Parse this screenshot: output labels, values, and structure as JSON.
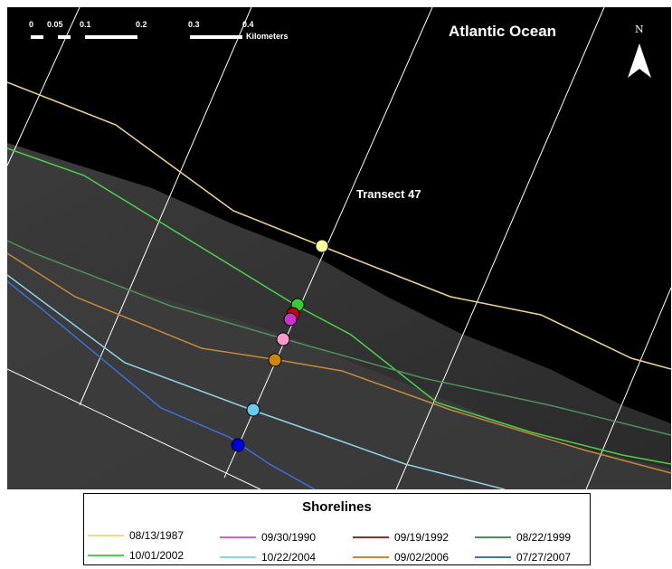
{
  "map": {
    "ocean_label": "Atlantic Ocean",
    "transect_label": "Transect 47",
    "north_label": "N",
    "scale": {
      "ticks": [
        "0",
        "0.05",
        "0.1",
        "0.2",
        "0.3",
        "0.4"
      ],
      "unit": "Kilometers"
    }
  },
  "legend": {
    "title": "Shorelines",
    "items": [
      {
        "date": "08/13/1987",
        "color": "#f3d58f"
      },
      {
        "date": "09/30/1990",
        "color": "#d95fd5"
      },
      {
        "date": "09/19/1992",
        "color": "#9b2a2a"
      },
      {
        "date": "08/22/1999",
        "color": "#4f8f5c"
      },
      {
        "date": "10/01/2002",
        "color": "#4bd24b"
      },
      {
        "date": "10/22/2004",
        "color": "#8fd3e6"
      },
      {
        "date": "09/02/2006",
        "color": "#c48a3c"
      },
      {
        "date": "07/27/2007",
        "color": "#3d6fd6"
      }
    ]
  },
  "intersection_points": [
    {
      "date": "08/13/1987",
      "color": "#ffff99"
    },
    {
      "date": "10/01/2002",
      "color": "#33cc33"
    },
    {
      "date": "09/19/1992",
      "color": "#cc0000"
    },
    {
      "date": "09/30/1990",
      "color": "#cc33cc"
    },
    {
      "date": "09/02/2006",
      "color": "#ff99cc"
    },
    {
      "date": "09/02/2006",
      "color": "#cc8800"
    },
    {
      "date": "10/22/2004",
      "color": "#66ccee"
    },
    {
      "date": "07/27/2007",
      "color": "#0000dd"
    }
  ]
}
